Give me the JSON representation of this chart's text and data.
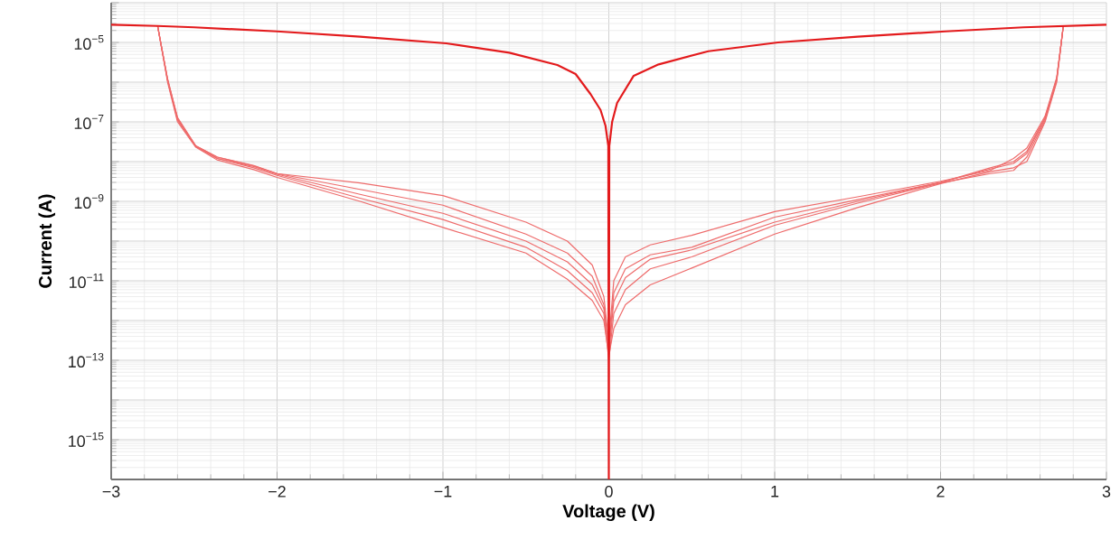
{
  "chart_data": {
    "type": "line",
    "xlabel": "Voltage (V)",
    "ylabel": "Current (A)",
    "log": "y",
    "grid": true,
    "marker": "none",
    "line_style": "solid",
    "xlim": [
      -3,
      3
    ],
    "ylim": [
      1e-16,
      0.0001
    ],
    "xticks": [
      {
        "value": -3,
        "label": "−3"
      },
      {
        "value": -2,
        "label": "−2"
      },
      {
        "value": -1,
        "label": "−1"
      },
      0,
      1,
      2,
      3
    ],
    "yticks": [
      {
        "value": 1e-16,
        "label": null
      },
      {
        "value": 1e-15,
        "label": "10$^{−15}$"
      },
      {
        "value": 1e-14,
        "label": null
      },
      {
        "value": 1e-13,
        "label": "10$^{−13}$"
      },
      {
        "value": 1e-12,
        "label": null
      },
      {
        "value": 1e-11,
        "label": "10$^{−11}$"
      },
      {
        "value": 1e-10,
        "label": null
      },
      {
        "value": 1e-09,
        "label": "10$^{−9}$"
      },
      {
        "value": 1e-08,
        "label": null
      },
      {
        "value": 1e-07,
        "label": "10$^{−7}$"
      },
      {
        "value": 1e-06,
        "label": null
      },
      {
        "value": 1e-05,
        "label": "10$^{−5}$"
      },
      {
        "value": 0.0001,
        "label": null
      }
    ],
    "x": [
      -2.72,
      -2.66,
      -2.6,
      -2.49,
      -2.36,
      -2.14,
      -2.0,
      -1.5,
      -1.0,
      -0.5,
      -0.25,
      -0.1,
      -0.03,
      0.0,
      0.03,
      0.1,
      0.25,
      0.5,
      1.0,
      1.5,
      2.0,
      2.3,
      2.44,
      2.52,
      2.63,
      2.7,
      2.74
    ],
    "series": [
      {
        "color": "#ee6b6b",
        "values": [
          2.6e-05,
          1e-06,
          1e-07,
          2.3e-08,
          1.1e-08,
          6.3e-09,
          4e-09,
          1e-09,
          2.2e-10,
          5e-11,
          1.1e-11,
          3.2e-12,
          1e-12,
          1.3e-13,
          6.3e-13,
          2.5e-12,
          7.9e-12,
          2.1e-11,
          1.5e-10,
          7e-10,
          2.8e-09,
          5.6e-09,
          7e-09,
          1e-08,
          1e-07,
          1e-06,
          2.6e-05
        ]
      },
      {
        "color": "#ee6b6b",
        "values": [
          2.6e-05,
          1.1e-06,
          1.1e-07,
          2.4e-08,
          1.2e-08,
          7e-09,
          4.5e-09,
          1.2e-09,
          3.5e-10,
          7e-11,
          1.8e-11,
          5e-12,
          1.5e-12,
          1e-13,
          1.5e-12,
          6e-12,
          2e-11,
          4e-11,
          2.5e-10,
          9e-10,
          2.9e-09,
          5e-09,
          6e-09,
          1.3e-08,
          1.1e-07,
          1.1e-06,
          2.6e-05
        ]
      },
      {
        "color": "#ee6b6b",
        "values": [
          2.6e-05,
          1.1e-06,
          1.2e-07,
          2.4e-08,
          1.2e-08,
          7.5e-09,
          4.8e-09,
          1.5e-09,
          5e-10,
          1e-10,
          3e-11,
          8e-12,
          2e-12,
          1.5e-13,
          3e-12,
          1.2e-11,
          3.5e-11,
          6e-11,
          3e-10,
          1e-09,
          3e-09,
          6.5e-09,
          9e-09,
          1.6e-08,
          1.2e-07,
          1.2e-06,
          2.6e-05
        ]
      },
      {
        "color": "#ee6b6b",
        "values": [
          2.6e-05,
          1.2e-06,
          1.2e-07,
          2.5e-08,
          1.3e-08,
          7.8e-09,
          5e-09,
          2e-09,
          8e-10,
          1.5e-10,
          5e-11,
          1.3e-11,
          2.5e-12,
          2e-13,
          5e-12,
          2e-11,
          4.5e-11,
          7e-11,
          4e-10,
          1.1e-09,
          3e-09,
          7e-09,
          1e-08,
          1.8e-08,
          1.3e-07,
          1.2e-06,
          2.6e-05
        ]
      },
      {
        "color": "#ee6b6b",
        "values": [
          2.6e-05,
          1.2e-06,
          1.3e-07,
          2.5e-08,
          1.3e-08,
          8e-09,
          5e-09,
          2.9e-09,
          1.4e-09,
          3e-10,
          1e-10,
          2.5e-11,
          4e-12,
          3e-13,
          1e-11,
          4e-11,
          8e-11,
          1.4e-10,
          5.5e-10,
          1.3e-09,
          3.2e-09,
          6e-09,
          1.2e-08,
          2.2e-08,
          1.4e-07,
          1.3e-06,
          2.6e-05
        ]
      },
      {
        "color": "#e31a1c",
        "x": [
          -3,
          -2.72,
          -2.5,
          -2.0,
          -1.5,
          -0.98,
          -0.6,
          -0.31,
          -0.2,
          -0.11,
          -0.05,
          -0.02,
          -0.003,
          0,
          0.003,
          0.02,
          0.05,
          0.15,
          0.3,
          0.6,
          1.02,
          1.5,
          2.03,
          2.5,
          3
        ],
        "values": [
          2.8e-05,
          2.6e-05,
          2.4e-05,
          1.9e-05,
          1.4e-05,
          9.5e-06,
          5.5e-06,
          2.7e-06,
          1.6e-06,
          5e-07,
          2e-07,
          8e-08,
          2.5e-08,
          1e-16,
          2.5e-08,
          1e-07,
          3e-07,
          1.45e-06,
          2.8e-06,
          6e-06,
          1e-05,
          1.4e-05,
          1.9e-05,
          2.4e-05,
          2.8e-05
        ]
      }
    ]
  }
}
